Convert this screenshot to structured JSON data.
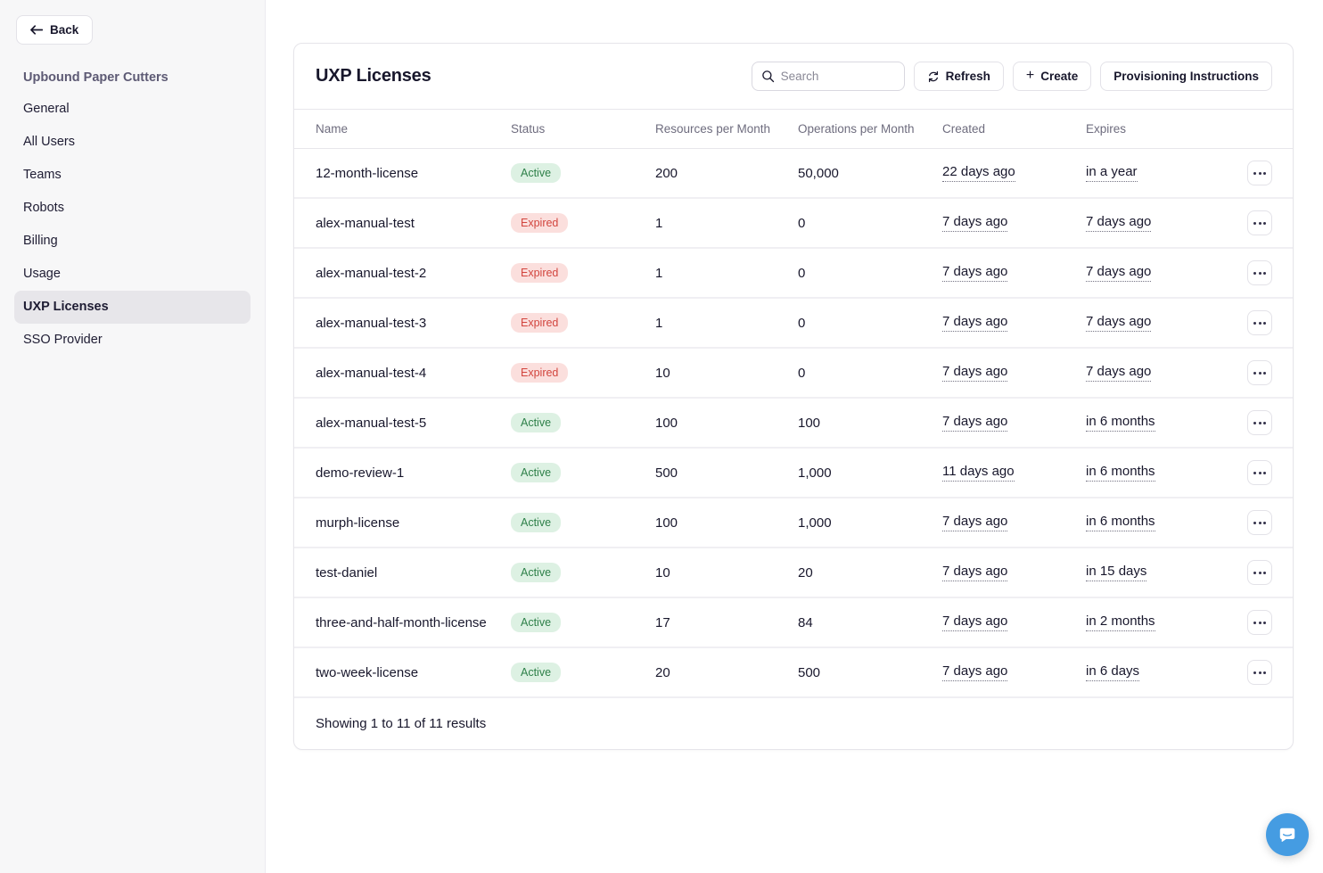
{
  "sidebar": {
    "back_label": "Back",
    "org_name": "Upbound Paper Cutters",
    "items": [
      {
        "label": "General",
        "active": false
      },
      {
        "label": "All Users",
        "active": false
      },
      {
        "label": "Teams",
        "active": false
      },
      {
        "label": "Robots",
        "active": false
      },
      {
        "label": "Billing",
        "active": false
      },
      {
        "label": "Usage",
        "active": false
      },
      {
        "label": "UXP Licenses",
        "active": true
      },
      {
        "label": "SSO Provider",
        "active": false
      }
    ]
  },
  "main": {
    "title": "UXP Licenses",
    "search_placeholder": "Search",
    "refresh_label": "Refresh",
    "create_label": "Create",
    "provisioning_label": "Provisioning Instructions",
    "table": {
      "columns": [
        "Name",
        "Status",
        "Resources per Month",
        "Operations per Month",
        "Created",
        "Expires"
      ],
      "rows": [
        {
          "name": "12-month-license",
          "status": "Active",
          "resources": "200",
          "operations": "50,000",
          "created": "22 days ago",
          "expires": "in a year"
        },
        {
          "name": "alex-manual-test",
          "status": "Expired",
          "resources": "1",
          "operations": "0",
          "created": "7 days ago",
          "expires": "7 days ago"
        },
        {
          "name": "alex-manual-test-2",
          "status": "Expired",
          "resources": "1",
          "operations": "0",
          "created": "7 days ago",
          "expires": "7 days ago"
        },
        {
          "name": "alex-manual-test-3",
          "status": "Expired",
          "resources": "1",
          "operations": "0",
          "created": "7 days ago",
          "expires": "7 days ago"
        },
        {
          "name": "alex-manual-test-4",
          "status": "Expired",
          "resources": "10",
          "operations": "0",
          "created": "7 days ago",
          "expires": "7 days ago"
        },
        {
          "name": "alex-manual-test-5",
          "status": "Active",
          "resources": "100",
          "operations": "100",
          "created": "7 days ago",
          "expires": "in 6 months"
        },
        {
          "name": "demo-review-1",
          "status": "Active",
          "resources": "500",
          "operations": "1,000",
          "created": "11 days ago",
          "expires": "in 6 months"
        },
        {
          "name": "murph-license",
          "status": "Active",
          "resources": "100",
          "operations": "1,000",
          "created": "7 days ago",
          "expires": "in 6 months"
        },
        {
          "name": "test-daniel",
          "status": "Active",
          "resources": "10",
          "operations": "20",
          "created": "7 days ago",
          "expires": "in 15 days"
        },
        {
          "name": "three-and-half-month-license",
          "status": "Active",
          "resources": "17",
          "operations": "84",
          "created": "7 days ago",
          "expires": "in 2 months"
        },
        {
          "name": "two-week-license",
          "status": "Active",
          "resources": "20",
          "operations": "500",
          "created": "7 days ago",
          "expires": "in 6 days"
        }
      ],
      "footer": "Showing 1 to 11 of 11 results"
    }
  },
  "icons": {
    "back_arrow": "left-arrow",
    "search": "magnifier",
    "refresh": "circular-arrows",
    "create": "plus",
    "row_actions": "ellipsis",
    "chat": "speech-bubble-smile"
  },
  "colors": {
    "status_active_bg": "#ddf1e3",
    "status_active_text": "#2e8049",
    "status_expired_bg": "#fbdfdd",
    "status_expired_text": "#d2453e",
    "sidebar_bg": "#f7f7f8",
    "sidebar_selected_bg": "#e7e6ea",
    "org_name_text": "#5d5a74",
    "body_text": "#18172c",
    "muted_text": "#6e6c7e",
    "border": "#e6e5ea",
    "chat_bubble": "#459ce2"
  }
}
